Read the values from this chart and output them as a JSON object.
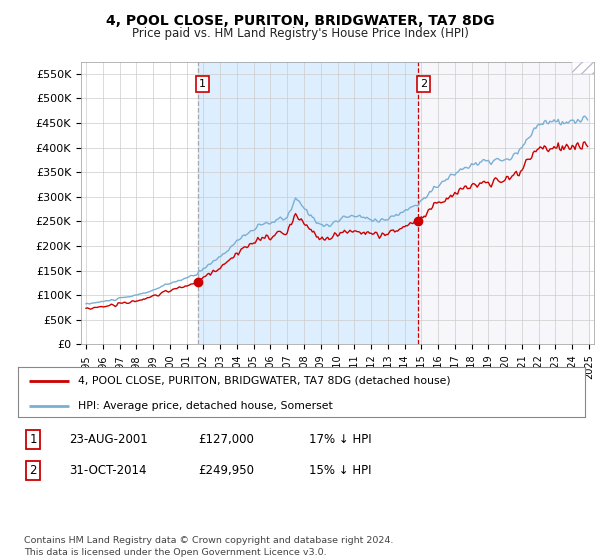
{
  "title": "4, POOL CLOSE, PURITON, BRIDGWATER, TA7 8DG",
  "subtitle": "Price paid vs. HM Land Registry's House Price Index (HPI)",
  "ylabel_ticks": [
    "£0",
    "£50K",
    "£100K",
    "£150K",
    "£200K",
    "£250K",
    "£300K",
    "£350K",
    "£400K",
    "£450K",
    "£500K",
    "£550K"
  ],
  "ytick_values": [
    0,
    50000,
    100000,
    150000,
    200000,
    250000,
    300000,
    350000,
    400000,
    450000,
    500000,
    550000
  ],
  "ylim": [
    0,
    575000
  ],
  "sale1_year": 2001.65,
  "sale1_price": 127000,
  "sale2_year": 2014.83,
  "sale2_price": 249950,
  "legend_line1": "4, POOL CLOSE, PURITON, BRIDGWATER, TA7 8DG (detached house)",
  "legend_line2": "HPI: Average price, detached house, Somerset",
  "table_row1": [
    "1",
    "23-AUG-2001",
    "£127,000",
    "17% ↓ HPI"
  ],
  "table_row2": [
    "2",
    "31-OCT-2014",
    "£249,950",
    "15% ↓ HPI"
  ],
  "footer": "Contains HM Land Registry data © Crown copyright and database right 2024.\nThis data is licensed under the Open Government Licence v3.0.",
  "hpi_color": "#7aafd4",
  "price_color": "#cc0000",
  "shade_color": "#ddeeff",
  "dashed_line_color": "#cc0000",
  "dashed1_color": "#aaaaaa",
  "background_color": "#ffffff",
  "grid_color": "#cccccc",
  "hatch_color": "#aaaacc"
}
